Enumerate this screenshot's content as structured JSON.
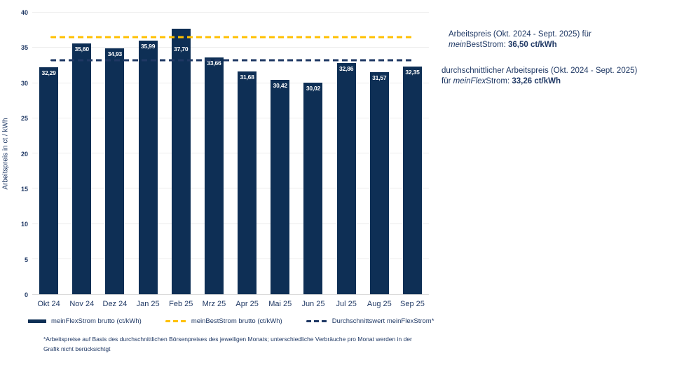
{
  "chart_data": {
    "type": "bar",
    "title": "",
    "ylabel": "Arbeitspreis in ct / kWh",
    "xlabel": "",
    "ylim": [
      0,
      40
    ],
    "ytick_step": 5,
    "grid": true,
    "legend_position": "bottom",
    "categories": [
      "Okt 24",
      "Nov 24",
      "Dez 24",
      "Jan 25",
      "Feb 25",
      "Mrz 25",
      "Apr 25",
      "Mai 25",
      "Jun 25",
      "Jul 25",
      "Aug 25",
      "Sep 25"
    ],
    "series": [
      {
        "name": "meinFlexStrom brutto (ct/kWh)",
        "kind": "bar",
        "color": "#0e2f55",
        "values": [
          32.29,
          35.6,
          34.93,
          35.99,
          37.7,
          33.66,
          31.68,
          30.42,
          30.02,
          32.86,
          31.57,
          32.35
        ],
        "labels": [
          "32,29",
          "35,60",
          "34,93",
          "35,99",
          "37,70",
          "33,66",
          "31,68",
          "30,42",
          "30,02",
          "32,86",
          "31,57",
          "32,35"
        ]
      },
      {
        "name": "meinBestStrom brutto (ct/kWh)",
        "kind": "dashed-line",
        "color": "#ffc000",
        "value": 36.5
      },
      {
        "name": "Durchschnittswert meinFlexStrom*",
        "kind": "dashed-line",
        "color": "#1f3864",
        "value": 33.26
      }
    ],
    "label_top_offsets": [
      3,
      3,
      3,
      3,
      24,
      3,
      3,
      3,
      3,
      3,
      3,
      3
    ]
  },
  "legend": {
    "items": [
      {
        "label": "meinFlexStrom brutto (ct/kWh)",
        "swatch": "bar",
        "color": "#0e2f55"
      },
      {
        "label": "meinBestStrom brutto (ct/kWh)",
        "swatch": "dash",
        "color": "#ffc000"
      },
      {
        "label": "Durchschnittswert meinFlexStrom*",
        "swatch": "dash",
        "color": "#1f3864"
      }
    ]
  },
  "annotations": {
    "blocks": [
      {
        "indent": true,
        "lines": [
          [
            {
              "t": "Arbeitspreis (Okt. 2024 - Sept. 2025) für",
              "s": "n"
            }
          ],
          [
            {
              "t": "mein",
              "s": "i"
            },
            {
              "t": "BestStrom: ",
              "s": "n"
            },
            {
              "t": "36,50 ct/kWh",
              "s": "b"
            }
          ]
        ]
      },
      {
        "indent": false,
        "lines": [
          [
            {
              "t": "durchschnittlicher Arbeitspreis (Okt. 2024 - Sept. 2025)",
              "s": "n"
            }
          ],
          [
            {
              "t": "für ",
              "s": "n"
            },
            {
              "t": "meinFlex",
              "s": "i"
            },
            {
              "t": "Strom: ",
              "s": "n"
            },
            {
              "t": "33,26 ct/kWh",
              "s": "b"
            }
          ]
        ]
      }
    ]
  },
  "footnote": {
    "line1": "*Arbeitspreise auf Basis des durchschnittlichen Börsenpreises des jeweiligen Monats; unterschiedliche Verbräuche pro Monat werden in der",
    "line2": "Grafik nicht berücksichtgt"
  },
  "colors": {
    "bar": "#0e2f55",
    "best_line": "#ffc000",
    "avg_line": "#1f3864",
    "text": "#1f3864",
    "grid": "#ededed",
    "axis": "#d9d9d9"
  }
}
